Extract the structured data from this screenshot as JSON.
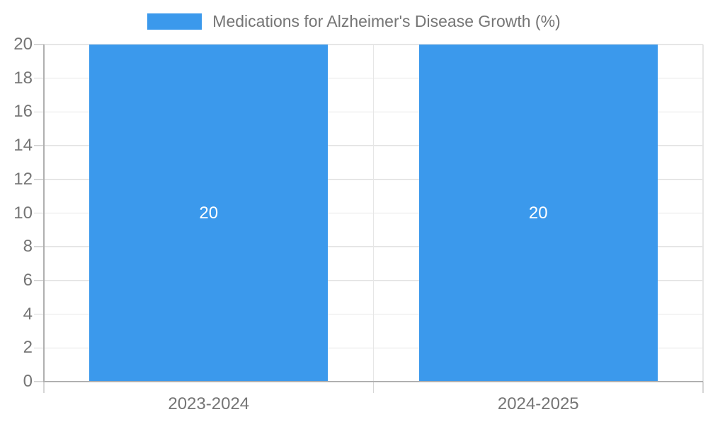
{
  "legend": {
    "position": "top-center",
    "label": "Medications for Alzheimer's Disease Growth (%)"
  },
  "chart_data": {
    "type": "bar",
    "title": "",
    "categories": [
      "2023-2024",
      "2024-2025"
    ],
    "series": [
      {
        "name": "Medications for Alzheimer's Disease Growth (%)",
        "values": [
          20,
          20
        ]
      }
    ],
    "bar_value_labels": [
      "20",
      "20"
    ],
    "xlabel": "",
    "ylabel": "",
    "ylim": [
      0,
      20
    ],
    "ytick_step": 2,
    "yticks": [
      0,
      2,
      4,
      6,
      8,
      10,
      12,
      14,
      16,
      18,
      20
    ],
    "grid": true,
    "legend_position": "top",
    "colors": {
      "bar": "#3B99EC",
      "axis_text": "#757575",
      "bar_label_text": "#FFFFFF",
      "gridline": "#E6E6E6",
      "axis_line": "#B0B0B0",
      "tick_line": "#D6D6D6",
      "background": "#FFFFFF"
    }
  }
}
